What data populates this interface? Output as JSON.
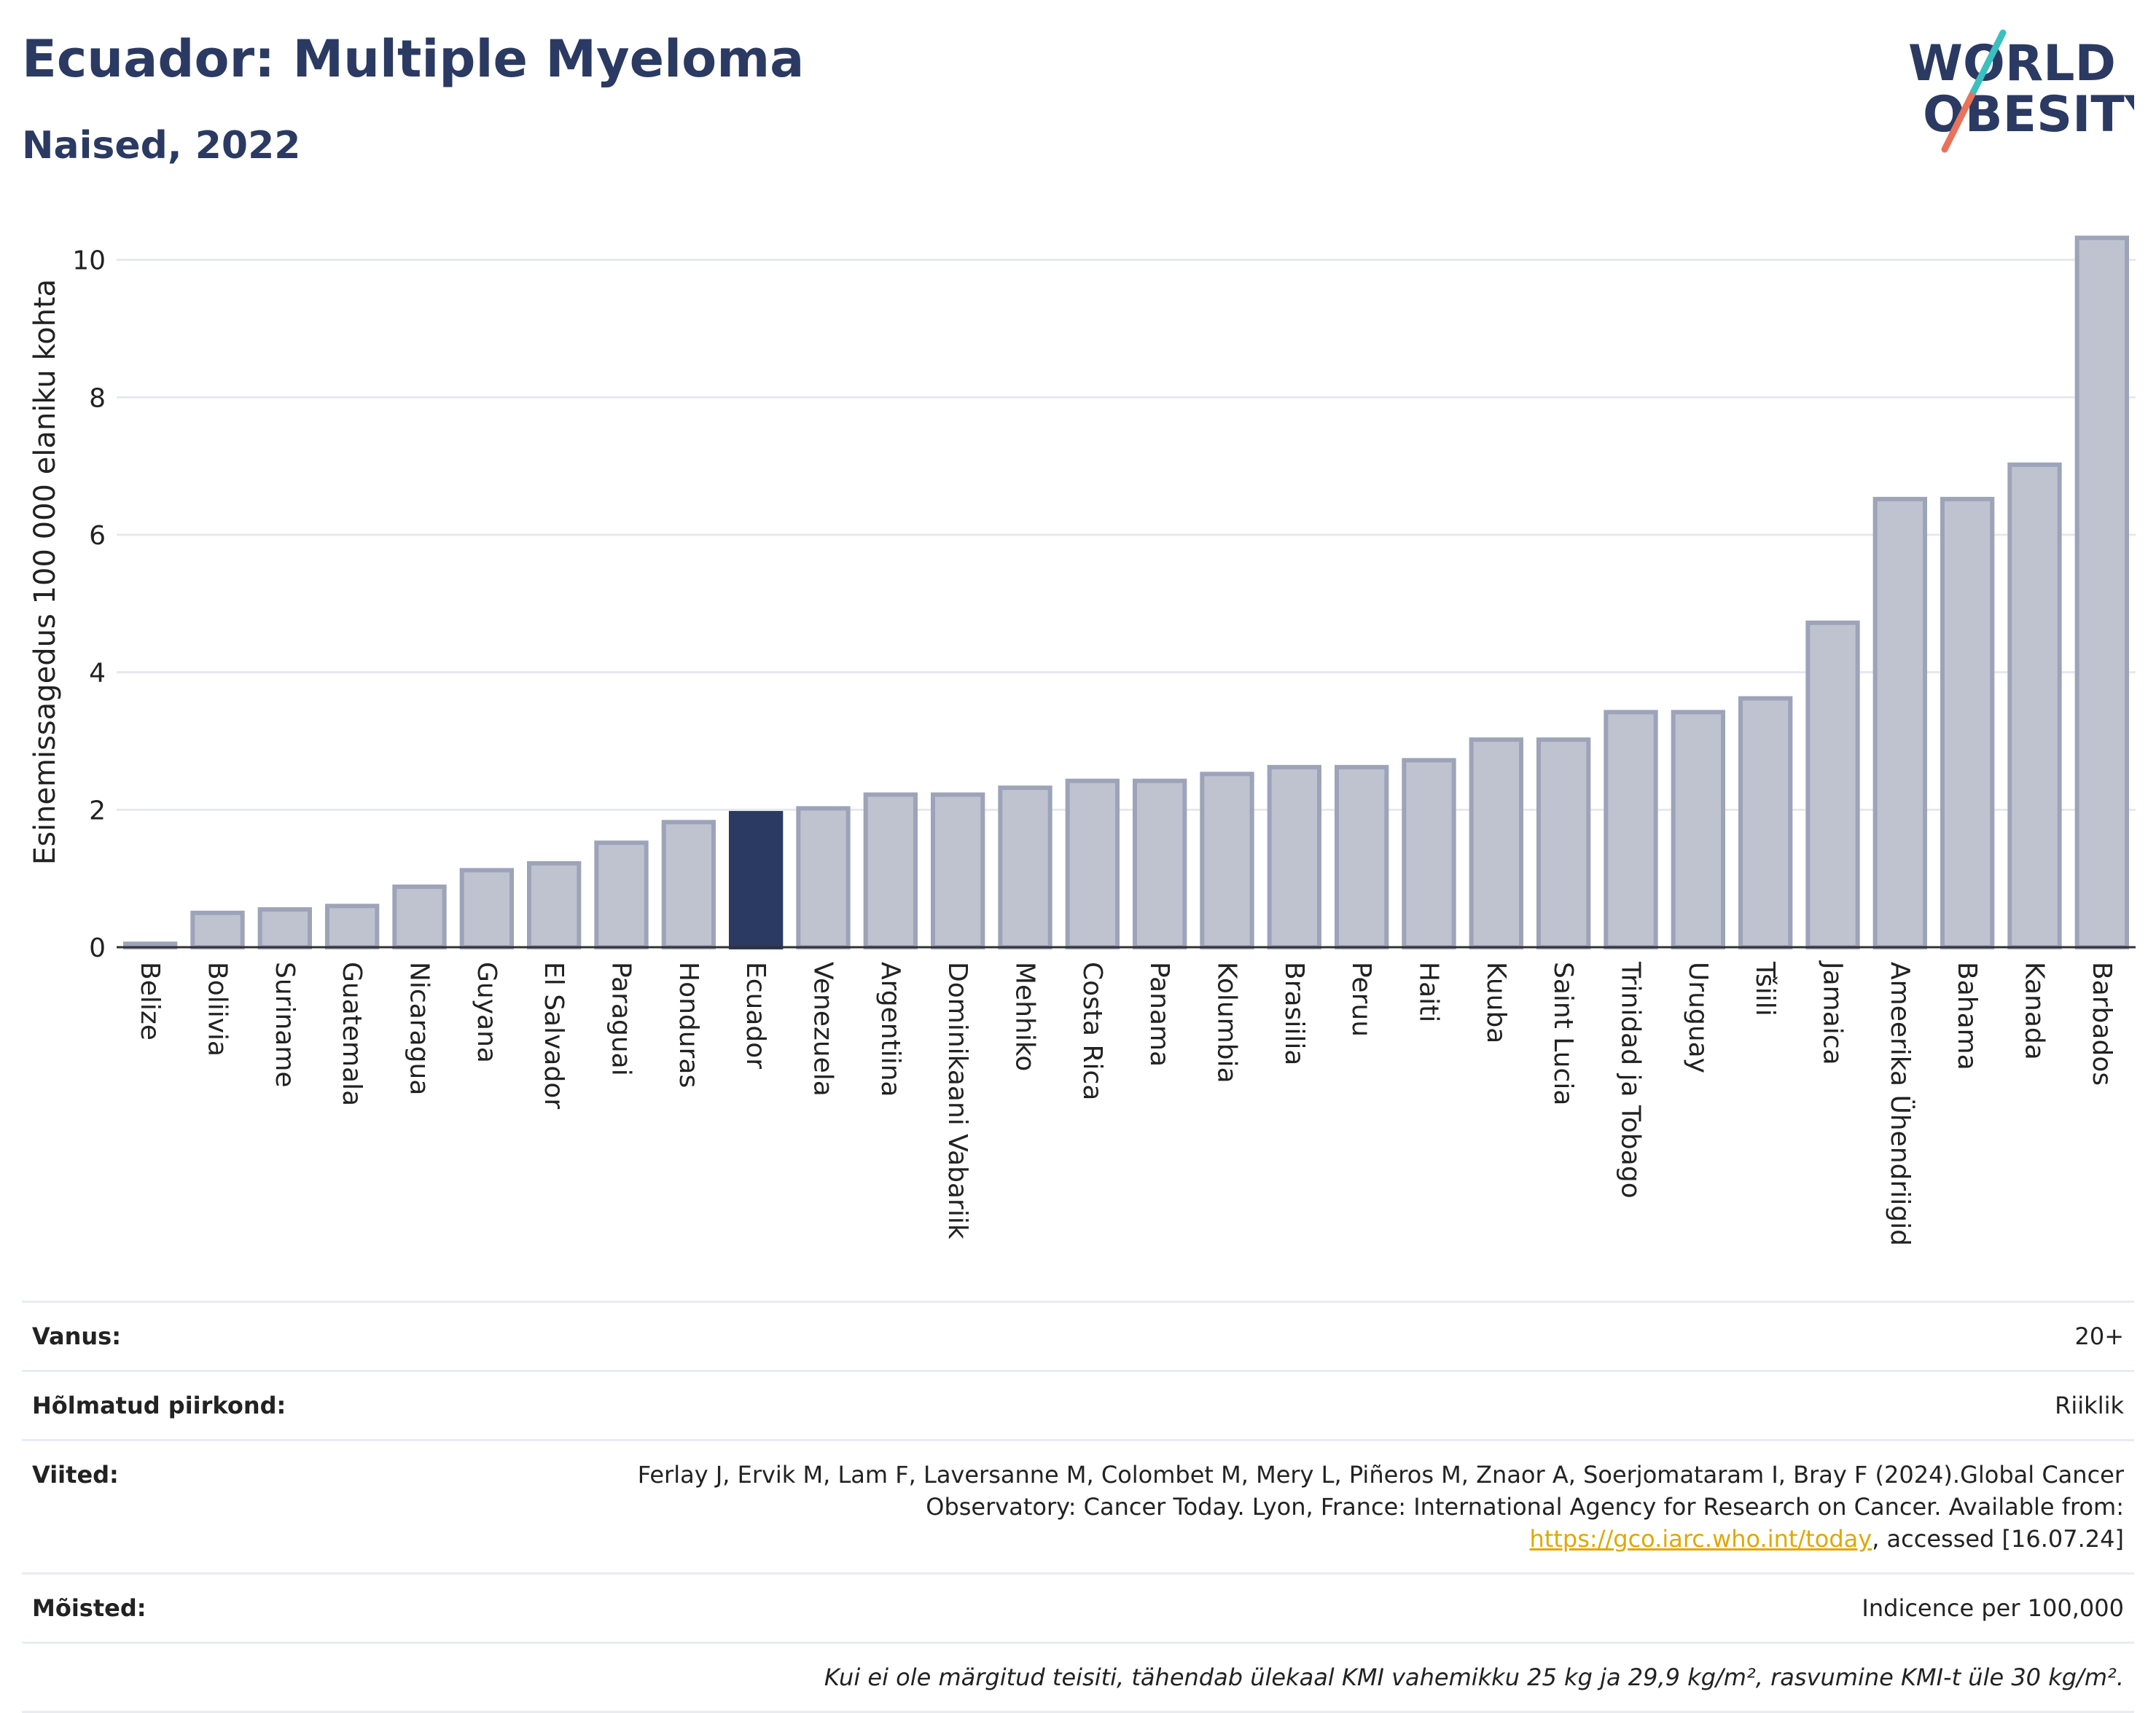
{
  "header": {
    "title": "Ecuador: Multiple Myeloma",
    "subtitle": "Naised, 2022",
    "logo_top": "WORLD",
    "logo_bottom": "OBESITY"
  },
  "colors": {
    "highlight": "#2b3a63",
    "bar": "#bfc3d0",
    "bar_border": "#9da3b8",
    "title": "#2b3a63",
    "link": "#e0a800"
  },
  "chart_data": {
    "type": "bar",
    "title": "Ecuador: Multiple Myeloma",
    "subtitle": "Naised, 2022",
    "xlabel": "",
    "ylabel": "Esinemissagedus 100 000 elaniku kohta",
    "ylim": [
      0,
      10.6
    ],
    "yticks": [
      0,
      2,
      4,
      6,
      8,
      10
    ],
    "grid": true,
    "highlight": "Ecuador",
    "categories": [
      "Belize",
      "Boliivia",
      "Suriname",
      "Guatemala",
      "Nicaragua",
      "Guyana",
      "El Salvador",
      "Paraguai",
      "Honduras",
      "Ecuador",
      "Venezuela",
      "Argentiina",
      "Dominikaani Vabariik",
      "Mehhiko",
      "Costa Rica",
      "Panama",
      "Kolumbia",
      "Brasiilia",
      "Peruu",
      "Haiti",
      "Kuuba",
      "Saint Lucia",
      "Trinidad ja Tobago",
      "Uruguay",
      "Tšiili",
      "Jamaica",
      "Ameerika Ühendriigid",
      "Bahama",
      "Kanada",
      "Barbados"
    ],
    "values": [
      0.05,
      0.5,
      0.55,
      0.6,
      0.88,
      1.12,
      1.22,
      1.52,
      1.82,
      1.95,
      2.02,
      2.22,
      2.22,
      2.32,
      2.42,
      2.42,
      2.52,
      2.62,
      2.62,
      2.72,
      3.02,
      3.02,
      3.42,
      3.42,
      3.62,
      4.72,
      6.52,
      6.52,
      7.02,
      10.32
    ]
  },
  "info": {
    "age_key": "Vanus:",
    "age_value": "20+",
    "region_key": "Hõlmatud piirkond:",
    "region_value": "Riiklik",
    "refs_key": "Viited:",
    "refs_text_1": "Ferlay J, Ervik M, Lam F, Laversanne M, Colombet M, Mery L, Piñeros M, Znaor A, Soerjomataram I, Bray F (2024).Global Cancer Observatory: Cancer Today. Lyon, France: International Agency for Research on Cancer. Available from: ",
    "refs_link": "https://gco.iarc.who.int/today",
    "refs_text_2": ", accessed [16.07.24]",
    "defs_key": "Mõisted:",
    "defs_value": "Indicence per 100,000",
    "note": "Kui ei ole märgitud teisiti, tähendab ülekaal KMI vahemikku 25 kg ja 29,9 kg/m², rasvumine KMI-t üle 30 kg/m²."
  }
}
